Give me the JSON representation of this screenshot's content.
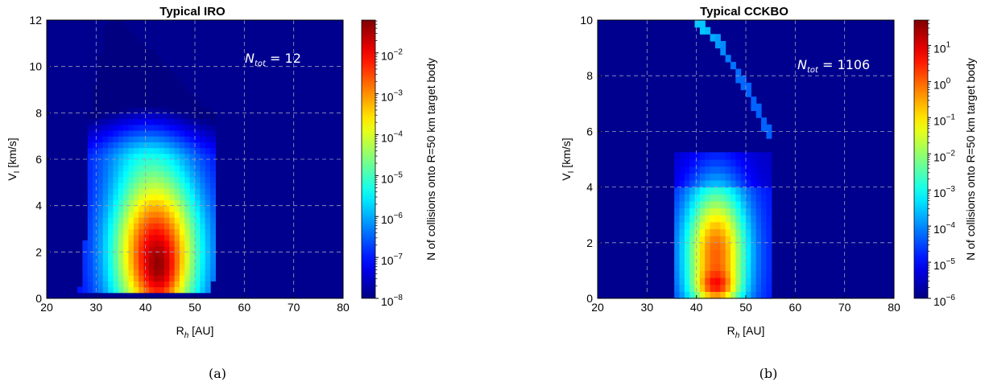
{
  "chart_data": [
    {
      "type": "heatmap",
      "title": "Typical IRO",
      "xlabel_main": "R",
      "xlabel_sub": "h",
      "xlabel_unit": " [AU]",
      "ylabel_main": "V",
      "ylabel_sub": "I",
      "ylabel_unit": " [km/s]",
      "xlim": [
        20,
        80
      ],
      "ylim": [
        0,
        12
      ],
      "xticks": [
        20,
        30,
        40,
        50,
        60,
        70,
        80
      ],
      "yticks": [
        0,
        2,
        4,
        6,
        8,
        10,
        12
      ],
      "grid": true,
      "annotation_main": "N",
      "annotation_sub": "tot",
      "annotation_rest": " = 12",
      "colorbar": {
        "label": "N of collisions onto R=50 km target body",
        "scale": "log",
        "ticks": [
          "10^{-8}",
          "10^{-7}",
          "10^{-6}",
          "10^{-5}",
          "10^{-4}",
          "10^{-3}",
          "10^{-2}"
        ],
        "tick_base": "10",
        "tick_exp": [
          "-8",
          "-7",
          "-6",
          "-5",
          "-4",
          "-3",
          "-2"
        ],
        "range_exp": [
          -8,
          -1.2
        ]
      },
      "density_peaks": [
        {
          "x": 43,
          "y": 1.1,
          "log10_value": -1.5
        },
        {
          "x": 37,
          "y": 3.0,
          "log10_value": -2.5
        }
      ],
      "caption": "(a)"
    },
    {
      "type": "heatmap",
      "title": "Typical CCKBO",
      "xlabel_main": "R",
      "xlabel_sub": "h",
      "xlabel_unit": " [AU]",
      "ylabel_main": "V",
      "ylabel_sub": "I",
      "ylabel_unit": " [km/s]",
      "xlim": [
        20,
        80
      ],
      "ylim": [
        0,
        10
      ],
      "xticks": [
        20,
        30,
        40,
        50,
        60,
        70,
        80
      ],
      "yticks": [
        0,
        2,
        4,
        6,
        8,
        10
      ],
      "grid": true,
      "annotation_main": "N",
      "annotation_sub": "tot",
      "annotation_rest": " = 1106",
      "colorbar": {
        "label": "N of collisions onto R=50 km target body",
        "scale": "log",
        "ticks": [
          "10^{-6}",
          "10^{-5}",
          "10^{-4}",
          "10^{-3}",
          "10^{-2}",
          "10^{-1}",
          "10^{0}",
          "10^{1}"
        ],
        "tick_base": "10",
        "tick_exp": [
          "-6",
          "-5",
          "-4",
          "-3",
          "-2",
          "-1",
          "0",
          "1"
        ],
        "range_exp": [
          -6,
          1.7
        ]
      },
      "density_peaks": [
        {
          "x": 44,
          "y": 0.5,
          "log10_value": 1.2
        },
        {
          "x": 44,
          "y": 2.0,
          "log10_value": 0.3
        }
      ],
      "caption": "(b)"
    }
  ]
}
